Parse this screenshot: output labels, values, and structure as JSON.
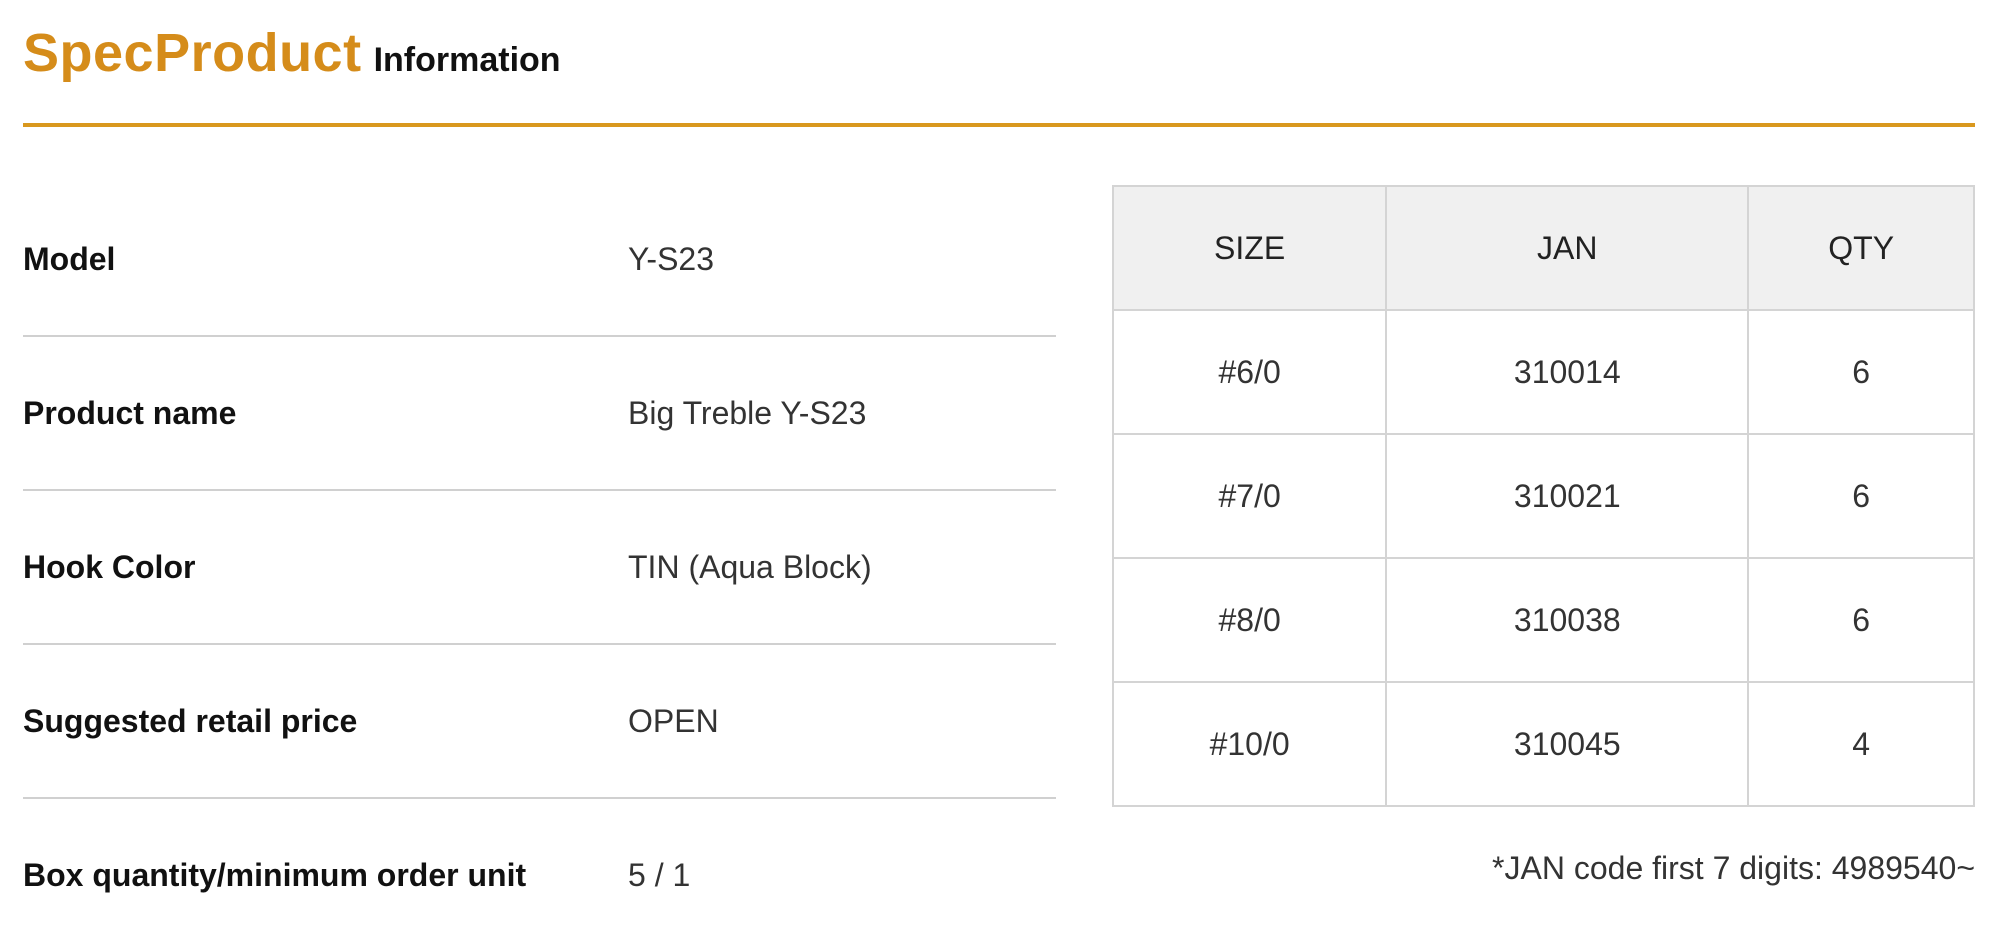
{
  "header": {
    "title_main": "SpecProduct",
    "title_sub": "Information",
    "accent_color": "#d58c1a"
  },
  "spec": [
    {
      "label": "Model",
      "value": "Y-S23"
    },
    {
      "label": "Product name",
      "value": "Big Treble Y-S23"
    },
    {
      "label": "Hook Color",
      "value": "TIN (Aqua Block)"
    },
    {
      "label": "Suggested retail price",
      "value": "OPEN"
    },
    {
      "label": "Box quantity/minimum order unit",
      "value": "5 / 1"
    }
  ],
  "sizes_table": {
    "headers": [
      "SIZE",
      "JAN",
      "QTY"
    ],
    "rows": [
      [
        "#6/0",
        "310014",
        "6"
      ],
      [
        "#7/0",
        "310021",
        "6"
      ],
      [
        "#8/0",
        "310038",
        "6"
      ],
      [
        "#10/0",
        "310045",
        "4"
      ]
    ]
  },
  "note": "*JAN code first 7 digits: 4989540~"
}
